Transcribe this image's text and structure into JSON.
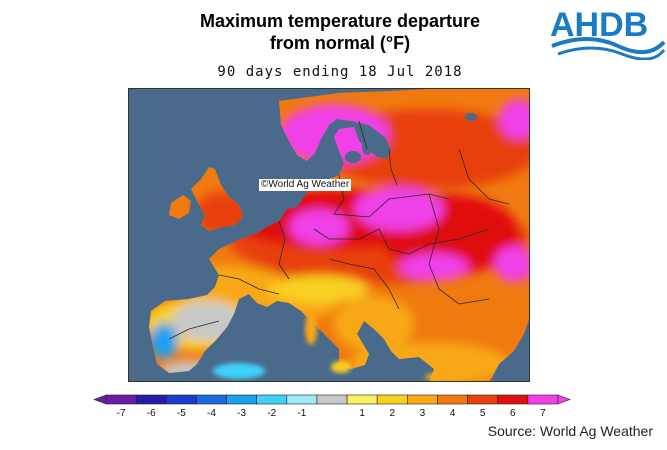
{
  "title": {
    "line1": "Maximum temperature departure",
    "line2": "from normal (°F)"
  },
  "logo": {
    "text": "AHDB"
  },
  "subtitle": "90 days ending 18 Jul 2018",
  "credit": "©World Ag Weather",
  "source": "Source: World Ag Weather",
  "colors": {
    "sea": "#4a6a8c",
    "accent_logo": "#1a7bc4"
  },
  "legend": {
    "unit": "°F",
    "bins": [
      {
        "label": "-7",
        "color": "#6a1ea8"
      },
      {
        "label": "-6",
        "color": "#2a1aa8"
      },
      {
        "label": "-5",
        "color": "#1a3ad0"
      },
      {
        "label": "-4",
        "color": "#1a6ae0"
      },
      {
        "label": "-3",
        "color": "#1aa0f0"
      },
      {
        "label": "-2",
        "color": "#40d0f8"
      },
      {
        "label": "-1",
        "color": "#a0e8f8"
      },
      {
        "label": "",
        "color": "#c8c8c8"
      },
      {
        "label": "1",
        "color": "#f8f060"
      },
      {
        "label": "2",
        "color": "#f8d020"
      },
      {
        "label": "3",
        "color": "#f8a818"
      },
      {
        "label": "4",
        "color": "#f07a10"
      },
      {
        "label": "5",
        "color": "#e84010"
      },
      {
        "label": "6",
        "color": "#e01010"
      },
      {
        "label": "7",
        "color": "#f040e8"
      }
    ]
  }
}
